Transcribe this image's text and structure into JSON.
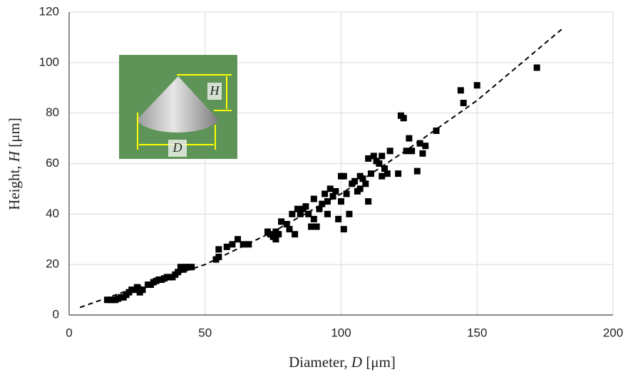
{
  "chart_data": {
    "type": "scatter",
    "x_label": [
      "Diameter, ",
      "D",
      " [μm]"
    ],
    "y_label": [
      "Height, ",
      "H",
      " [μm]"
    ],
    "annotations": [
      "H",
      "D"
    ],
    "xlim": [
      0,
      200
    ],
    "xticks": [
      0,
      50,
      100,
      150,
      200
    ],
    "ylim": [
      0,
      120
    ],
    "yticks": [
      0,
      20,
      40,
      60,
      80,
      100,
      120
    ],
    "grid": true,
    "color": "#000000",
    "series": [
      {
        "color": "#000000",
        "x": [
          14,
          15,
          16,
          17,
          18,
          19,
          20,
          21,
          22,
          23,
          24,
          25,
          26,
          26,
          27,
          29,
          30,
          31,
          32,
          33,
          34,
          35,
          36,
          37,
          38,
          39,
          40,
          41,
          42,
          43,
          44,
          45,
          54,
          55,
          55,
          58,
          60,
          62,
          64,
          66,
          73,
          74,
          75,
          76,
          76,
          77,
          78,
          80,
          81,
          82,
          83,
          84,
          85,
          86,
          87,
          88,
          89,
          90,
          90,
          91,
          92,
          93,
          94,
          95,
          95,
          96,
          97,
          98,
          99,
          100,
          100,
          101,
          101,
          102,
          103,
          104,
          105,
          106,
          107,
          107,
          108,
          109,
          110,
          110,
          111,
          112,
          113,
          114,
          115,
          115,
          116,
          117,
          118,
          121,
          122,
          123,
          124,
          125,
          126,
          128,
          129,
          130,
          131,
          135,
          144,
          145,
          150,
          172
        ],
        "values": [
          6,
          6,
          6,
          6,
          6.5,
          7,
          7,
          8,
          9,
          10,
          10,
          11,
          9,
          10,
          10,
          12,
          12,
          13,
          13.5,
          14,
          14,
          14.5,
          15,
          15,
          15,
          16,
          17,
          19,
          18,
          19,
          19,
          19,
          22,
          23,
          26,
          27,
          28,
          30,
          28,
          28,
          33,
          32,
          31,
          30,
          33,
          32,
          37,
          36,
          34,
          40,
          32,
          42,
          40,
          42,
          43,
          40,
          35,
          46,
          38,
          35,
          42,
          44,
          48,
          40,
          45,
          50,
          47,
          49,
          38,
          55,
          45,
          34,
          55,
          48,
          40,
          52,
          53,
          49,
          55,
          50,
          54,
          52,
          62,
          45,
          56,
          63,
          61,
          60,
          63,
          55,
          58,
          56,
          65,
          56,
          79,
          78,
          65,
          70,
          65,
          57,
          68,
          64,
          67,
          73,
          89,
          84,
          91,
          98
        ]
      },
      {
        "color": "#000000",
        "dashed": true,
        "x": [
          4,
          25,
          50,
          75,
          100,
          125,
          150,
          182
        ],
        "values": [
          3,
          11,
          20,
          33,
          48,
          66,
          85,
          114
        ]
      }
    ]
  }
}
